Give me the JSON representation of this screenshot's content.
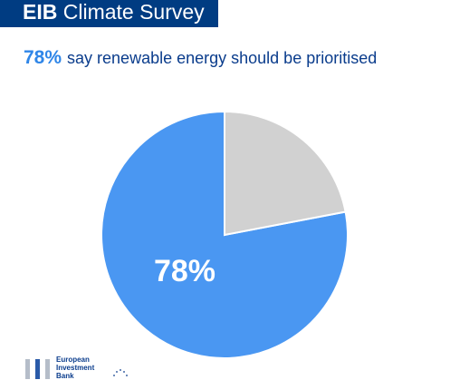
{
  "header": {
    "brand": "EIB",
    "title_rest": " Climate Survey"
  },
  "headline": {
    "percent": "78%",
    "text": "say renewable energy should be prioritised"
  },
  "logo": {
    "line1": "European",
    "line2": "Investment",
    "line3": "Bank"
  },
  "colors": {
    "primary_slice": "#4a97f2",
    "other_slice": "#d1d1d1",
    "header_bg": "#003c82",
    "accent": "#2f86e8"
  },
  "chart_data": {
    "type": "pie",
    "slices": [
      {
        "value": 78,
        "color": "#4a97f2",
        "label": "78%"
      },
      {
        "value": 22,
        "color": "#d1d1d1",
        "label": ""
      }
    ],
    "title": "",
    "legend": "none"
  }
}
